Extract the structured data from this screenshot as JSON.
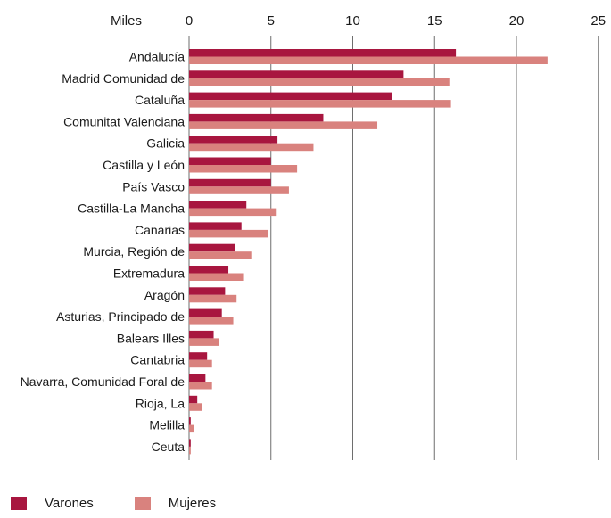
{
  "chart_data": {
    "type": "bar",
    "orientation": "horizontal",
    "unit_label": "Miles",
    "xlim": [
      0,
      25
    ],
    "xticks": [
      0,
      5,
      10,
      15,
      20,
      25
    ],
    "grid": true,
    "legend_position": "bottom-left",
    "categories": [
      "Andalucía",
      "Madrid Comunidad de",
      "Cataluña",
      "Comunitat Valenciana",
      "Galicia",
      "Castilla y León",
      "País Vasco",
      "Castilla-La Mancha",
      "Canarias",
      "Murcia, Región de",
      "Extremadura",
      "Aragón",
      "Asturias, Principado de",
      "Balears Illes",
      "Cantabria",
      "Navarra, Comunidad Foral de",
      "Rioja, La",
      "Melilla",
      "Ceuta"
    ],
    "series": [
      {
        "name": "Varones",
        "color": "#a8163f",
        "values": [
          16.3,
          13.1,
          12.4,
          8.2,
          5.4,
          5.0,
          5.0,
          3.5,
          3.2,
          2.8,
          2.4,
          2.2,
          2.0,
          1.5,
          1.1,
          1.0,
          0.5,
          0.1,
          0.1
        ]
      },
      {
        "name": "Mujeres",
        "color": "#d9827e",
        "values": [
          21.9,
          15.9,
          16.0,
          11.5,
          7.6,
          6.6,
          6.1,
          5.3,
          4.8,
          3.8,
          3.3,
          2.9,
          2.7,
          1.8,
          1.4,
          1.4,
          0.8,
          0.3,
          0.1
        ]
      }
    ]
  }
}
